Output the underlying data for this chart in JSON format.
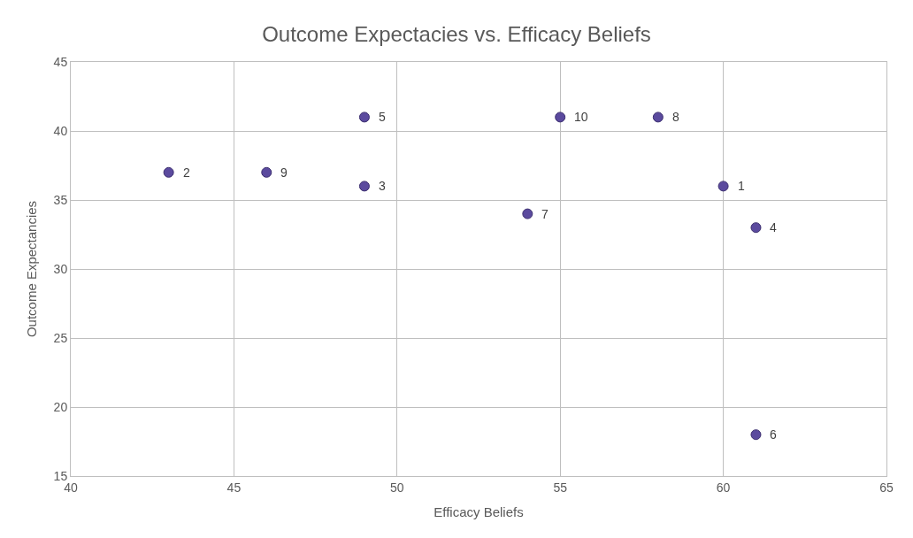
{
  "chart_data": {
    "type": "scatter",
    "title": "Outcome Expectacies vs. Efficacy Beliefs",
    "xlabel": "Efficacy Beliefs",
    "ylabel": "Outcome Expectancies",
    "x": [
      60,
      43,
      49,
      61,
      49,
      61,
      54,
      58,
      46,
      55
    ],
    "values": [
      36,
      37,
      36,
      33,
      41,
      18,
      34,
      41,
      37,
      41
    ],
    "annotations": [
      {
        "text": "1",
        "x": 60,
        "y": 36
      },
      {
        "text": "2",
        "x": 43,
        "y": 37
      },
      {
        "text": "3",
        "x": 49,
        "y": 36
      },
      {
        "text": "4",
        "x": 61,
        "y": 33
      },
      {
        "text": "5",
        "x": 49,
        "y": 41
      },
      {
        "text": "6",
        "x": 61,
        "y": 18
      },
      {
        "text": "7",
        "x": 54,
        "y": 34
      },
      {
        "text": "8",
        "x": 58,
        "y": 41
      },
      {
        "text": "9",
        "x": 46,
        "y": 37
      },
      {
        "text": "10",
        "x": 55,
        "y": 41
      }
    ],
    "color": "#5b4a9e",
    "marker": "circle",
    "grid": true,
    "xlim": [
      40,
      65
    ],
    "xticks": [
      40,
      45,
      50,
      55,
      60,
      65
    ],
    "ylim": [
      15,
      45
    ],
    "yticks": [
      15,
      20,
      25,
      30,
      35,
      40,
      45
    ]
  }
}
